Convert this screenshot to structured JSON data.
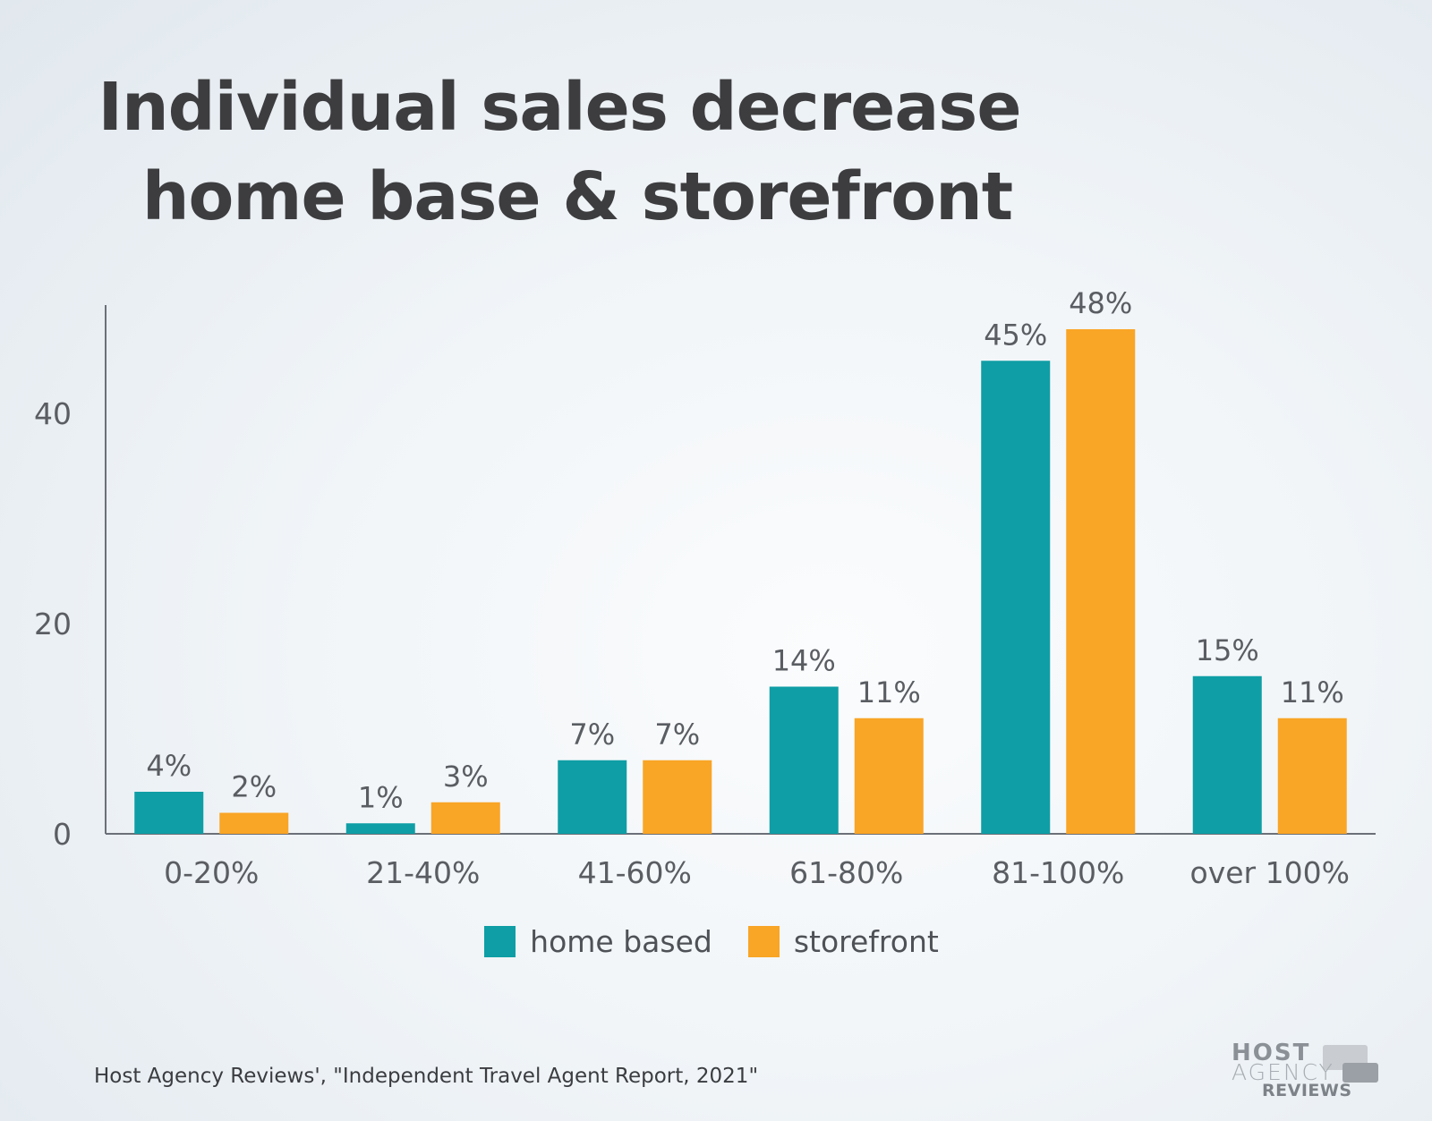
{
  "title": {
    "line1": "Individual sales decrease",
    "line2": "home base & storefront"
  },
  "chart_data": {
    "type": "bar",
    "title": "Individual sales decrease home base & storefront",
    "categories": [
      "0-20%",
      "21-40%",
      "41-60%",
      "61-80%",
      "81-100%",
      "over 100%"
    ],
    "series": [
      {
        "name": "home based",
        "color": "#0f9ea5",
        "values": [
          4,
          1,
          7,
          14,
          45,
          15
        ],
        "labels": [
          "4%",
          "1%",
          "7%",
          "14%",
          "45%",
          "15%"
        ]
      },
      {
        "name": "storefront",
        "color": "#f9a526",
        "values": [
          2,
          3,
          7,
          11,
          48,
          11
        ],
        "labels": [
          "2%",
          "3%",
          "7%",
          "11%",
          "48%",
          "11%"
        ]
      }
    ],
    "y_ticks": [
      "0",
      "20",
      "40"
    ],
    "ylim": [
      0,
      50
    ],
    "xlabel": "",
    "ylabel": "",
    "grid": false,
    "legend_position": "bottom"
  },
  "legend": [
    {
      "label": "home based",
      "color": "#0f9ea5"
    },
    {
      "label": "storefront",
      "color": "#f9a526"
    }
  ],
  "source": "Host Agency Reviews', \"Independent Travel Agent Report, 2021\"",
  "logo": {
    "line1": "HOST",
    "line2": "AGENCY",
    "line3": "REVIEWS"
  }
}
